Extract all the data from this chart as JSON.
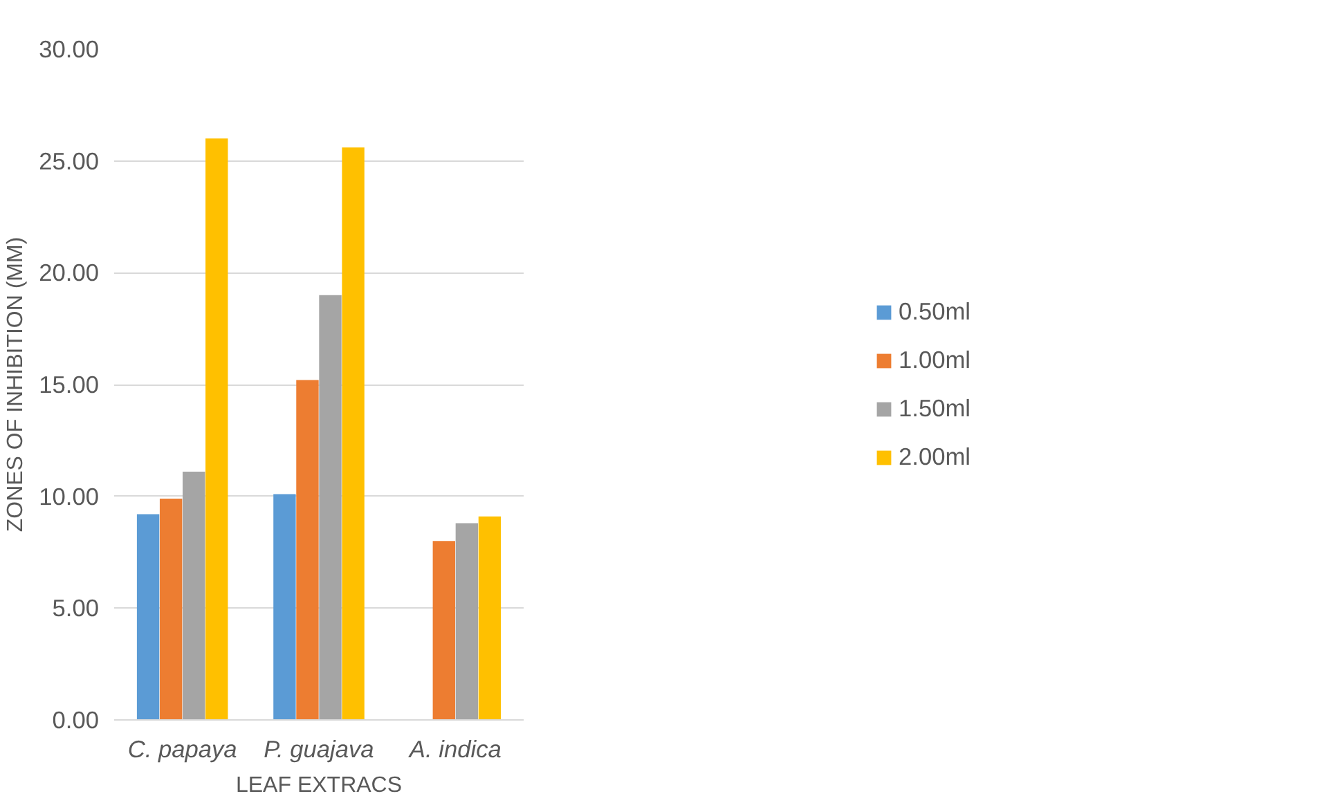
{
  "chart_data": {
    "type": "bar",
    "xlabel": "LEAF EXTRACS",
    "ylabel": "ZONES OF INHIBITION (MM)",
    "categories": [
      "C. papaya",
      "P. guajava",
      "A. indica"
    ],
    "series": [
      {
        "name": "0.50ml",
        "color": "#5b9bd5",
        "values": [
          9.2,
          10.1,
          null
        ]
      },
      {
        "name": "1.00ml",
        "color": "#ed7d31",
        "values": [
          9.9,
          15.2,
          8.0
        ]
      },
      {
        "name": "1.50ml",
        "color": "#a5a5a5",
        "values": [
          11.1,
          19.0,
          8.8
        ]
      },
      {
        "name": "2.00ml",
        "color": "#ffc000",
        "values": [
          26.0,
          25.6,
          9.1
        ]
      }
    ],
    "ylim": [
      0,
      30
    ],
    "yticks": [
      {
        "value": 0,
        "label": "0.00"
      },
      {
        "value": 5,
        "label": "5.00"
      },
      {
        "value": 10,
        "label": "10.00"
      },
      {
        "value": 15,
        "label": "15.00"
      },
      {
        "value": 20,
        "label": "20.00"
      },
      {
        "value": 25,
        "label": "25.00"
      },
      {
        "value": 30,
        "label": "30.00"
      }
    ],
    "grid": "y",
    "legend": "right"
  }
}
